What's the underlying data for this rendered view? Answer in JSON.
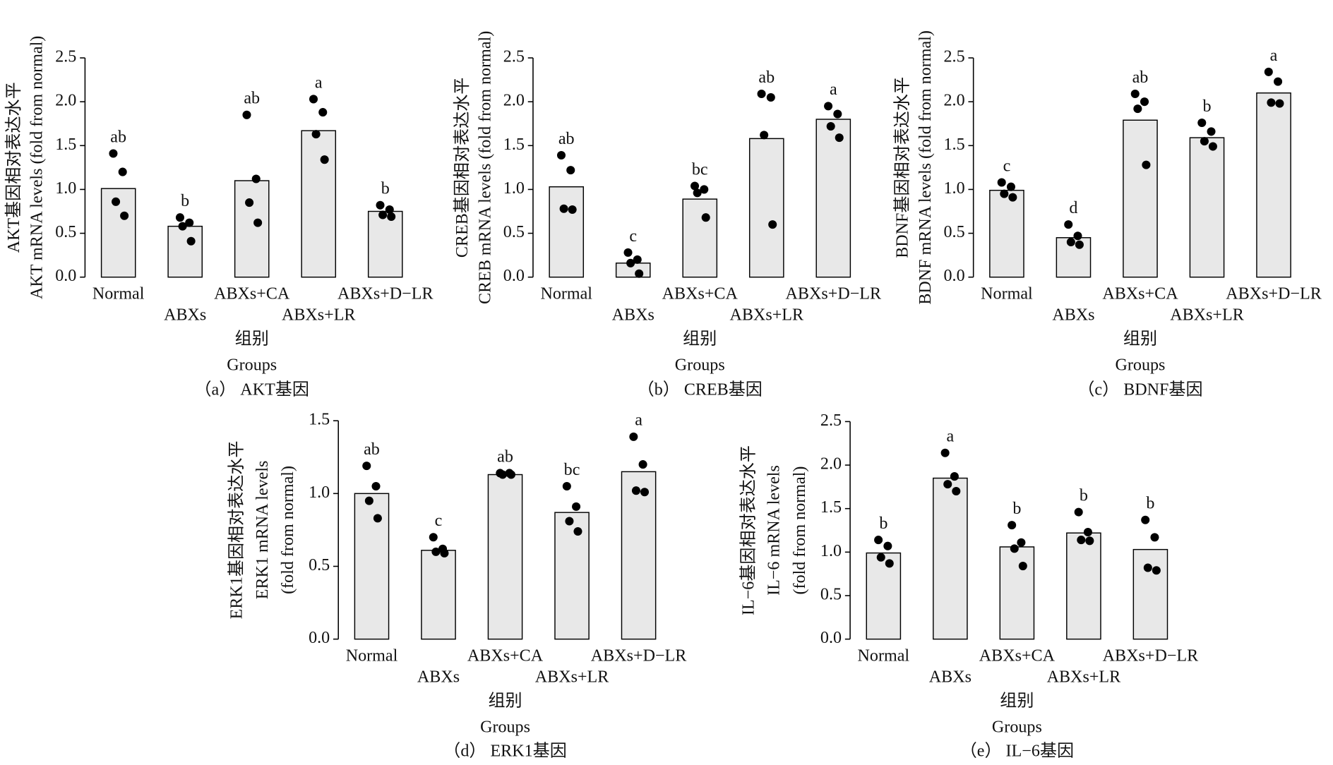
{
  "chart_data": [
    {
      "type": "bar",
      "caption": "（a） AKT基因",
      "ylabel": [
        "AKT基因相对表达水平",
        "AKT mRNA levels (fold from normal)"
      ],
      "xlabel": [
        "组别",
        "Groups"
      ],
      "categories": [
        "Normal",
        "ABXs",
        "ABXs+CA",
        "ABXs+LR",
        "ABXs+D−LR"
      ],
      "values": [
        1.01,
        0.58,
        1.1,
        1.67,
        0.75
      ],
      "points": [
        [
          1.41,
          1.2,
          0.86,
          0.7
        ],
        [
          0.68,
          0.62,
          0.58,
          0.41
        ],
        [
          1.85,
          1.12,
          0.85,
          0.62
        ],
        [
          2.03,
          1.88,
          1.63,
          1.34
        ],
        [
          0.82,
          0.77,
          0.71,
          0.69
        ]
      ],
      "letters": [
        "ab",
        "b",
        "ab",
        "a",
        "b"
      ],
      "ylim": [
        0,
        2.5
      ],
      "yticks": [
        {
          "value": 0,
          "label": "0.0"
        },
        0.5,
        {
          "value": 1,
          "label": "1.0"
        },
        1.5,
        {
          "value": 2,
          "label": "2.0"
        },
        2.5
      ]
    },
    {
      "type": "bar",
      "caption": "（b） CREB基因",
      "ylabel": [
        "CREB基因相对表达水平",
        "CREB mRNA levels (fold from normal)"
      ],
      "xlabel": [
        "组别",
        "Groups"
      ],
      "categories": [
        "Normal",
        "ABXs",
        "ABXs+CA",
        "ABXs+LR",
        "ABXs+D−LR"
      ],
      "values": [
        1.03,
        0.16,
        0.89,
        1.58,
        1.8
      ],
      "points": [
        [
          1.39,
          1.22,
          0.78,
          0.77
        ],
        [
          0.28,
          0.2,
          0.16,
          0.04
        ],
        [
          1.04,
          1.0,
          0.96,
          0.68
        ],
        [
          2.09,
          2.05,
          1.62,
          0.6
        ],
        [
          1.95,
          1.86,
          1.72,
          1.59
        ]
      ],
      "letters": [
        "ab",
        "c",
        "bc",
        "ab",
        "a"
      ],
      "ylim": [
        0,
        2.5
      ],
      "yticks": [
        {
          "value": 0,
          "label": "0.0"
        },
        0.5,
        {
          "value": 1,
          "label": "1.0"
        },
        1.5,
        {
          "value": 2,
          "label": "2.0"
        },
        2.5
      ]
    },
    {
      "type": "bar",
      "caption": "（c） BDNF基因",
      "ylabel": [
        "BDNF基因相对表达水平",
        "BDNF mRNA levels (fold from normal)"
      ],
      "xlabel": [
        "组别",
        "Groups"
      ],
      "categories": [
        "Normal",
        "ABXs",
        "ABXs+CA",
        "ABXs+LR",
        "ABXs+D−LR"
      ],
      "values": [
        0.99,
        0.45,
        1.79,
        1.59,
        2.1
      ],
      "points": [
        [
          1.08,
          1.03,
          0.95,
          0.91
        ],
        [
          0.6,
          0.47,
          0.4,
          0.37
        ],
        [
          2.09,
          2.0,
          1.92,
          1.28
        ],
        [
          1.76,
          1.66,
          1.55,
          1.49
        ],
        [
          2.34,
          2.23,
          1.99,
          1.98
        ]
      ],
      "letters": [
        "c",
        "d",
        "ab",
        "b",
        "a"
      ],
      "ylim": [
        0,
        2.5
      ],
      "yticks": [
        {
          "value": 0,
          "label": "0.0"
        },
        0.5,
        {
          "value": 1,
          "label": "1.0"
        },
        1.5,
        {
          "value": 2,
          "label": "2.0"
        },
        2.5
      ]
    },
    {
      "type": "bar",
      "caption": "（d） ERK1基因",
      "ylabel": [
        "ERK1基因相对表达水平",
        "ERK1 mRNA levels",
        "(fold from normal)"
      ],
      "xlabel": [
        "组别",
        "Groups"
      ],
      "categories": [
        "Normal",
        "ABXs",
        "ABXs+CA",
        "ABXs+LR",
        "ABXs+D−LR"
      ],
      "values": [
        1.0,
        0.61,
        1.13,
        0.87,
        1.15
      ],
      "points": [
        [
          1.19,
          1.05,
          0.95,
          0.83
        ],
        [
          0.7,
          0.62,
          0.6,
          0.59
        ],
        [
          1.14,
          1.14,
          1.13,
          1.13
        ],
        [
          1.05,
          0.91,
          0.81,
          0.74
        ],
        [
          1.39,
          1.2,
          1.02,
          1.01
        ]
      ],
      "letters": [
        "ab",
        "c",
        "ab",
        "bc",
        "a"
      ],
      "ylim": [
        0,
        1.5
      ],
      "yticks": [
        {
          "value": 0,
          "label": "0.0"
        },
        0.5,
        {
          "value": 1,
          "label": "1.0"
        },
        1.5
      ]
    },
    {
      "type": "bar",
      "caption": "（e） IL−6基因",
      "ylabel": [
        "IL−6基因相对表达水平",
        "IL−6 mRNA levels",
        "(fold from normal)"
      ],
      "xlabel": [
        "组别",
        "Groups"
      ],
      "categories": [
        "Normal",
        "ABXs",
        "ABXs+CA",
        "ABXs+LR",
        "ABXs+D−LR"
      ],
      "values": [
        0.99,
        1.85,
        1.06,
        1.22,
        1.03
      ],
      "points": [
        [
          1.14,
          1.07,
          0.94,
          0.87
        ],
        [
          2.14,
          1.87,
          1.78,
          1.7
        ],
        [
          1.31,
          1.11,
          1.04,
          0.84
        ],
        [
          1.46,
          1.23,
          1.14,
          1.13
        ],
        [
          1.37,
          1.17,
          0.82,
          0.79
        ]
      ],
      "letters": [
        "b",
        "a",
        "b",
        "b",
        "b"
      ],
      "ylim": [
        0,
        2.5
      ],
      "yticks": [
        {
          "value": 0,
          "label": "0.0"
        },
        0.5,
        {
          "value": 1,
          "label": "1.0"
        },
        1.5,
        {
          "value": 2,
          "label": "2.0"
        },
        2.5
      ]
    }
  ]
}
